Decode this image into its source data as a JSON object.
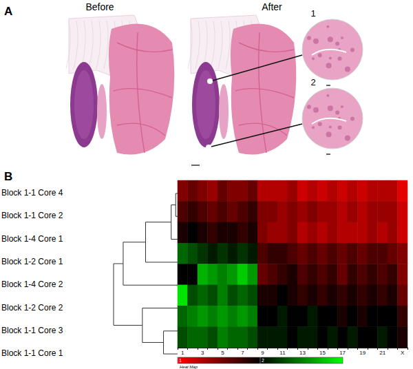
{
  "panels": {
    "A": {
      "label": "A",
      "before": "Before",
      "after": "After",
      "insets": [
        "1",
        "2"
      ]
    },
    "B": {
      "label": "B"
    }
  },
  "chart_data": {
    "type": "heatmap",
    "categories": [
      "1",
      null,
      "3",
      null,
      "5",
      null,
      "7",
      null,
      "9",
      null,
      "11",
      null,
      "13",
      null,
      "15",
      null,
      "17",
      null,
      "19",
      null,
      "21",
      null,
      "X"
    ],
    "rows": [
      "Block 1-1 Core 4",
      "Block 1-1 Core 2",
      "Block 1-4 Core 1",
      "Block 1-2 Core 1",
      "Block 1-4 Core 2",
      "Block 1-2 Core 2",
      "Block 1-1 Core 3",
      "Block 1-1 Core 1"
    ],
    "values": [
      [
        1.5,
        1.6,
        1.5,
        1.4,
        1.6,
        1.5,
        1.5,
        1.6,
        1.3,
        1.3,
        1.3,
        1.4,
        1.2,
        1.3,
        1.2,
        1.3,
        1.2,
        1.3,
        1.2,
        1.3,
        1.3,
        1.3,
        1.1
      ],
      [
        1.7,
        1.8,
        1.7,
        1.6,
        1.7,
        1.6,
        1.7,
        1.8,
        1.5,
        1.5,
        1.4,
        1.5,
        1.4,
        1.5,
        1.4,
        1.4,
        1.3,
        1.4,
        1.3,
        1.4,
        1.4,
        1.4,
        1.2
      ],
      [
        1.9,
        2.0,
        1.9,
        1.8,
        1.9,
        1.9,
        1.8,
        1.9,
        1.5,
        1.4,
        1.4,
        1.5,
        1.3,
        1.4,
        1.3,
        1.4,
        1.3,
        1.3,
        1.3,
        1.4,
        1.3,
        1.4,
        1.2
      ],
      [
        2.4,
        2.3,
        2.2,
        2.1,
        2.2,
        2.1,
        2.2,
        2.1,
        1.7,
        1.8,
        1.8,
        1.7,
        1.6,
        1.7,
        1.6,
        1.7,
        1.6,
        1.7,
        1.6,
        1.7,
        1.7,
        1.6,
        1.5
      ],
      [
        2.0,
        2.0,
        2.7,
        2.6,
        2.5,
        2.6,
        2.8,
        2.6,
        1.6,
        1.7,
        1.8,
        1.9,
        1.7,
        1.8,
        1.7,
        1.8,
        1.6,
        1.8,
        1.7,
        1.8,
        1.7,
        1.8,
        1.5
      ],
      [
        2.9,
        2.3,
        2.4,
        2.3,
        2.5,
        2.3,
        2.4,
        2.3,
        1.9,
        1.9,
        2.0,
        1.9,
        1.8,
        1.9,
        1.8,
        1.9,
        1.8,
        1.9,
        1.8,
        1.9,
        1.8,
        1.9,
        1.6
      ],
      [
        2.4,
        2.5,
        2.6,
        2.5,
        2.6,
        2.5,
        2.6,
        2.5,
        2.0,
        2.0,
        2.1,
        2.0,
        2.0,
        2.1,
        2.0,
        2.0,
        1.9,
        2.0,
        1.9,
        2.0,
        2.0,
        2.0,
        1.8
      ],
      [
        2.3,
        2.4,
        2.4,
        2.3,
        2.5,
        2.4,
        2.4,
        2.3,
        2.1,
        2.1,
        2.1,
        2.0,
        2.1,
        2.1,
        2.0,
        2.1,
        2.0,
        2.1,
        2.0,
        2.0,
        2.1,
        2.0,
        1.9
      ]
    ],
    "color_range": [
      1,
      3
    ],
    "color_ticks": [
      1,
      2
    ],
    "color_bar_label": "Heat Map",
    "tick_labels": "x",
    "dendrogram": {
      "merges": [
        [
          0,
          1,
          0.03
        ],
        [
          8,
          2,
          0.1
        ],
        [
          9,
          3,
          0.5
        ],
        [
          6,
          7,
          0.22
        ],
        [
          5,
          11,
          0.55
        ],
        [
          10,
          4,
          0.85
        ],
        [
          13,
          12,
          1.0
        ]
      ]
    }
  }
}
